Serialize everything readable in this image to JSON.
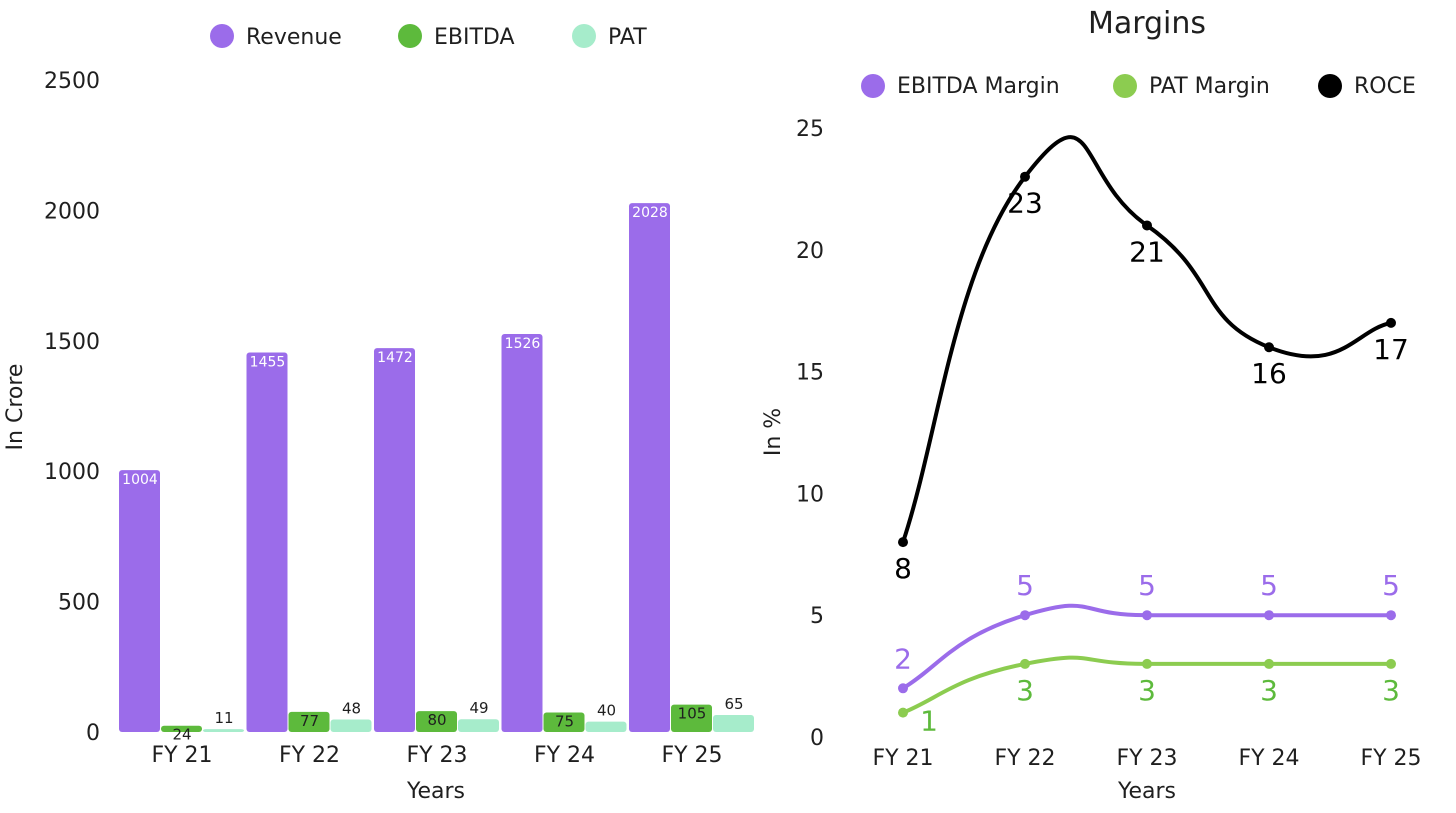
{
  "chart_data": [
    {
      "type": "bar",
      "title": "",
      "xlabel": "Years",
      "ylabel": "In Crore",
      "ylim": [
        0,
        2500
      ],
      "yticks": [
        0,
        500,
        1000,
        1500,
        2000,
        2500
      ],
      "categories": [
        "FY 21",
        "FY 22",
        "FY 23",
        "FY 24",
        "FY 25"
      ],
      "legend_position": "top-center",
      "grid": false,
      "series": [
        {
          "name": "Revenue",
          "color": "#9b6cea",
          "values": [
            1004,
            1455,
            1472,
            1526,
            2028
          ],
          "label_color": "#ffffff",
          "label_position": "inside-top"
        },
        {
          "name": "EBITDA",
          "color": "#5dba3c",
          "values": [
            24,
            77,
            80,
            75,
            105
          ],
          "label_color": "#1f1f1f",
          "label_position": "inside-top"
        },
        {
          "name": "PAT",
          "color": "#a6eccb",
          "values": [
            11,
            48,
            49,
            40,
            65
          ],
          "label_color": "#1f1f1f",
          "label_position": "above"
        }
      ]
    },
    {
      "type": "line",
      "title": "Margins",
      "xlabel": "Years",
      "ylabel": "In %",
      "ylim": [
        0,
        25
      ],
      "yticks": [
        0,
        5,
        10,
        15,
        20,
        25
      ],
      "categories": [
        "FY 21",
        "FY 22",
        "FY 23",
        "FY 24",
        "FY 25"
      ],
      "legend_position": "top-center",
      "grid": false,
      "smooth": true,
      "series": [
        {
          "name": "EBITDA Margin",
          "color": "#9b6cea",
          "values": [
            2,
            5,
            5,
            5,
            5
          ],
          "label_position": "above"
        },
        {
          "name": "PAT Margin",
          "color": "#8ccc50",
          "values": [
            1,
            3,
            3,
            3,
            3
          ],
          "label_position": "below",
          "label_color": "#5dba3c"
        },
        {
          "name": "ROCE",
          "color": "#000000",
          "values": [
            8,
            23,
            21,
            16,
            17
          ],
          "label_position": "below"
        }
      ]
    }
  ]
}
